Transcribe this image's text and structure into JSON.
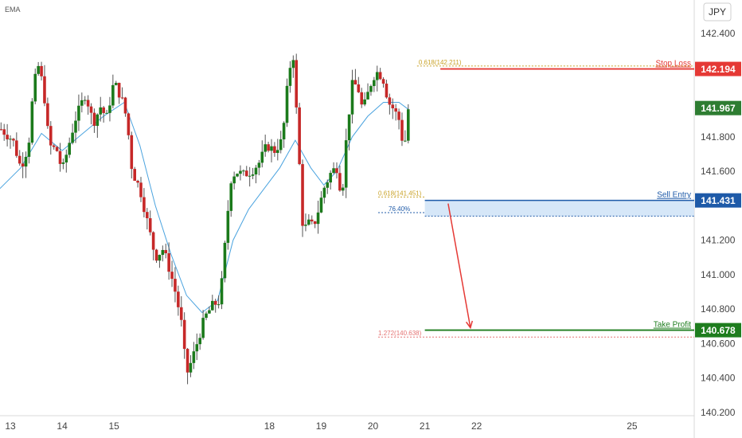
{
  "header": {
    "indicator_label": "EMA",
    "currency_button": "JPY"
  },
  "colors": {
    "bull": "#1b7a1b",
    "bear": "#c62828",
    "wick": "#555555",
    "ema": "#4aa3df",
    "stop": "#e53935",
    "entry": "#1e5aa8",
    "zone_fill": "#cfe3f7",
    "profit": "#1e7d1e",
    "arrow": "#e53935",
    "fib_gold": "#c9a227",
    "fib_red": "#e57373",
    "axis_text": "#444444",
    "last_price_bg": "#2e7d32"
  },
  "chart_data": {
    "type": "candlestick",
    "title": "",
    "ylim": [
      140.2,
      142.5
    ],
    "xlim": [
      12.8,
      26.2
    ],
    "yticks": [
      {
        "value": 142.4,
        "label": "142.400"
      },
      {
        "value": 142.2,
        "label": "142.200"
      },
      {
        "value": 141.8,
        "label": "141.800"
      },
      {
        "value": 141.6,
        "label": "141.600"
      },
      {
        "value": 141.2,
        "label": "141.200"
      },
      {
        "value": 141.0,
        "label": "141.000"
      },
      {
        "value": 140.8,
        "label": "140.800"
      },
      {
        "value": 140.6,
        "label": "140.600"
      },
      {
        "value": 140.4,
        "label": "140.400"
      },
      {
        "value": 140.2,
        "label": "140.200"
      }
    ],
    "xticks": [
      {
        "value": 13,
        "label": "13"
      },
      {
        "value": 14,
        "label": "14"
      },
      {
        "value": 15,
        "label": "15"
      },
      {
        "value": 18,
        "label": "18"
      },
      {
        "value": 19,
        "label": "19"
      },
      {
        "value": 20,
        "label": "20"
      },
      {
        "value": 21,
        "label": "21"
      },
      {
        "value": 22,
        "label": "22"
      },
      {
        "value": 25,
        "label": "25"
      }
    ],
    "ohlc_path": [
      [
        12.8,
        141.85
      ],
      [
        13.05,
        141.78
      ],
      [
        13.2,
        141.62
      ],
      [
        13.35,
        141.75
      ],
      [
        13.45,
        142.1
      ],
      [
        13.55,
        142.22
      ],
      [
        13.65,
        142.05
      ],
      [
        13.75,
        141.75
      ],
      [
        13.9,
        141.72
      ],
      [
        14.0,
        141.6
      ],
      [
        14.1,
        141.72
      ],
      [
        14.25,
        141.9
      ],
      [
        14.45,
        142.05
      ],
      [
        14.6,
        141.88
      ],
      [
        14.75,
        141.98
      ],
      [
        14.85,
        141.9
      ],
      [
        15.0,
        142.12
      ],
      [
        15.15,
        142.02
      ],
      [
        15.25,
        141.9
      ],
      [
        15.35,
        141.6
      ],
      [
        15.5,
        141.5
      ],
      [
        15.65,
        141.3
      ],
      [
        15.8,
        141.1
      ],
      [
        15.95,
        141.15
      ],
      [
        16.1,
        141.0
      ],
      [
        16.2,
        140.88
      ],
      [
        16.3,
        140.72
      ],
      [
        16.4,
        140.42
      ],
      [
        16.5,
        140.5
      ],
      [
        16.6,
        140.6
      ],
      [
        16.75,
        140.75
      ],
      [
        16.9,
        140.82
      ],
      [
        17.05,
        140.85
      ],
      [
        17.15,
        141.2
      ],
      [
        17.25,
        141.55
      ],
      [
        17.35,
        141.6
      ],
      [
        17.5,
        141.58
      ],
      [
        17.65,
        141.6
      ],
      [
        17.8,
        141.65
      ],
      [
        17.95,
        141.75
      ],
      [
        18.1,
        141.72
      ],
      [
        18.25,
        141.78
      ],
      [
        18.35,
        142.1
      ],
      [
        18.45,
        142.32
      ],
      [
        18.55,
        141.8
      ],
      [
        18.65,
        141.25
      ],
      [
        18.75,
        141.3
      ],
      [
        18.85,
        141.28
      ],
      [
        18.95,
        141.38
      ],
      [
        19.05,
        141.5
      ],
      [
        19.2,
        141.6
      ],
      [
        19.3,
        141.62
      ],
      [
        19.4,
        141.45
      ],
      [
        19.5,
        141.85
      ],
      [
        19.6,
        142.1
      ],
      [
        19.7,
        142.1
      ],
      [
        19.8,
        141.95
      ],
      [
        19.9,
        142.05
      ],
      [
        20.0,
        142.15
      ],
      [
        20.1,
        142.18
      ],
      [
        20.2,
        142.13
      ],
      [
        20.3,
        142.0
      ],
      [
        20.4,
        141.96
      ],
      [
        20.5,
        141.9
      ],
      [
        20.6,
        141.72
      ],
      [
        20.68,
        141.96
      ]
    ],
    "ema_points": [
      [
        12.8,
        141.5
      ],
      [
        13.2,
        141.62
      ],
      [
        13.6,
        141.82
      ],
      [
        14.0,
        141.72
      ],
      [
        14.4,
        141.82
      ],
      [
        14.8,
        141.92
      ],
      [
        15.2,
        142.0
      ],
      [
        15.5,
        141.75
      ],
      [
        15.8,
        141.4
      ],
      [
        16.1,
        141.12
      ],
      [
        16.4,
        140.88
      ],
      [
        16.7,
        140.78
      ],
      [
        17.0,
        140.85
      ],
      [
        17.3,
        141.2
      ],
      [
        17.6,
        141.38
      ],
      [
        17.9,
        141.5
      ],
      [
        18.2,
        141.62
      ],
      [
        18.5,
        141.78
      ],
      [
        18.8,
        141.62
      ],
      [
        19.05,
        141.52
      ],
      [
        19.3,
        141.6
      ],
      [
        19.6,
        141.8
      ],
      [
        19.9,
        141.92
      ],
      [
        20.2,
        142.0
      ],
      [
        20.5,
        142.0
      ],
      [
        20.68,
        141.96
      ]
    ],
    "levels": {
      "stop_loss": {
        "label": "Stop Loss",
        "value": 142.194,
        "value_label": "142.194"
      },
      "sell_entry": {
        "label": "Sell Entry",
        "value": 141.431,
        "value_label": "141.431"
      },
      "take_profit": {
        "label": "Take Profit",
        "value": 140.678,
        "value_label": "140.678"
      },
      "last_price": {
        "value": 141.967,
        "value_label": "141.967"
      },
      "zone_low": 141.34,
      "fib_618_top": {
        "label": "0.618(142.211)",
        "value": 142.211
      },
      "fib_618_entry": {
        "label": "0.618(141.451)",
        "value": 141.451
      },
      "fib_764": {
        "label": "76.40%",
        "value": 141.36
      },
      "fib_1272": {
        "label": "1.272(140.638)",
        "value": 140.638
      }
    }
  }
}
